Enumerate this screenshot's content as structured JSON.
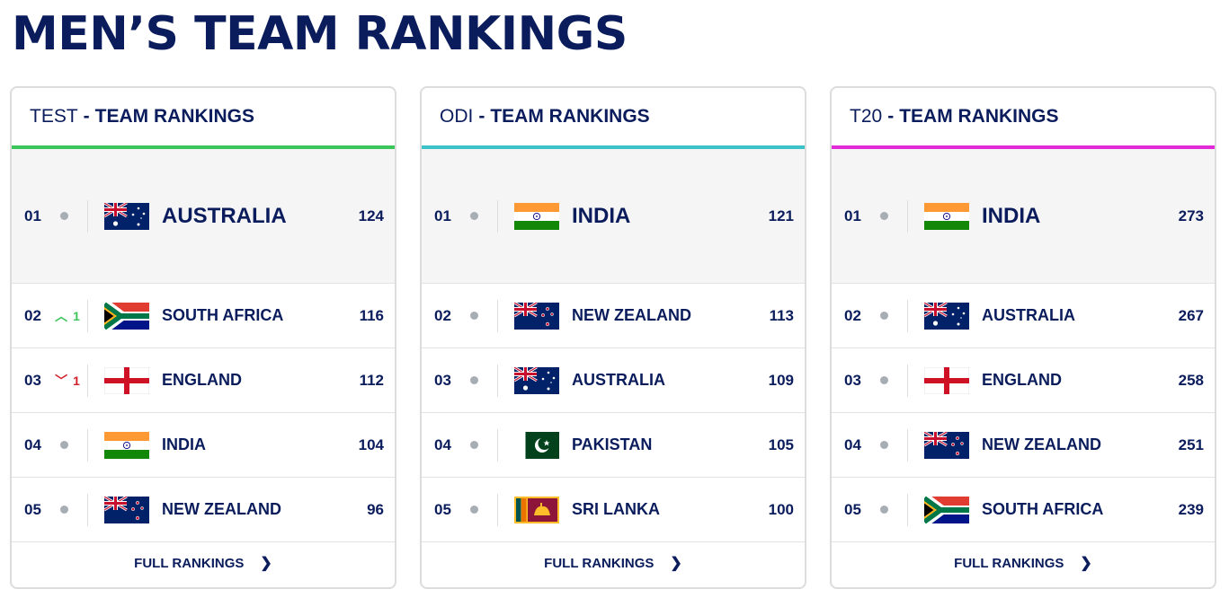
{
  "title": "MEN’S TEAM RANKINGS",
  "cards": [
    {
      "format": "TEST",
      "separator": "-",
      "label": "TEAM RANKINGS",
      "accent": "#3cc55a",
      "footer": "FULL RANKINGS",
      "rows": [
        {
          "pos": "01",
          "move": "none",
          "change": "",
          "team": "AUSTRALIA",
          "flag": "australia-flag-icon",
          "rating": "124"
        },
        {
          "pos": "02",
          "move": "up",
          "change": "1",
          "team": "SOUTH AFRICA",
          "flag": "south-africa-flag-icon",
          "rating": "116"
        },
        {
          "pos": "03",
          "move": "down",
          "change": "1",
          "team": "ENGLAND",
          "flag": "england-flag-icon",
          "rating": "112"
        },
        {
          "pos": "04",
          "move": "none",
          "change": "",
          "team": "INDIA",
          "flag": "india-flag-icon",
          "rating": "104"
        },
        {
          "pos": "05",
          "move": "none",
          "change": "",
          "team": "NEW ZEALAND",
          "flag": "new-zealand-flag-icon",
          "rating": "96"
        }
      ]
    },
    {
      "format": "ODI",
      "separator": "-",
      "label": "TEAM RANKINGS",
      "accent": "#3bc3c9",
      "footer": "FULL RANKINGS",
      "rows": [
        {
          "pos": "01",
          "move": "none",
          "change": "",
          "team": "INDIA",
          "flag": "india-flag-icon",
          "rating": "121"
        },
        {
          "pos": "02",
          "move": "none",
          "change": "",
          "team": "NEW ZEALAND",
          "flag": "new-zealand-flag-icon",
          "rating": "113"
        },
        {
          "pos": "03",
          "move": "none",
          "change": "",
          "team": "AUSTRALIA",
          "flag": "australia-flag-icon",
          "rating": "109"
        },
        {
          "pos": "04",
          "move": "none",
          "change": "",
          "team": "PAKISTAN",
          "flag": "pakistan-flag-icon",
          "rating": "105"
        },
        {
          "pos": "05",
          "move": "none",
          "change": "",
          "team": "SRI LANKA",
          "flag": "sri-lanka-flag-icon",
          "rating": "100"
        }
      ]
    },
    {
      "format": "T20",
      "separator": "-",
      "label": "TEAM RANKINGS",
      "accent": "#e12bd6",
      "footer": "FULL RANKINGS",
      "rows": [
        {
          "pos": "01",
          "move": "none",
          "change": "",
          "team": "INDIA",
          "flag": "india-flag-icon",
          "rating": "273"
        },
        {
          "pos": "02",
          "move": "none",
          "change": "",
          "team": "AUSTRALIA",
          "flag": "australia-flag-icon",
          "rating": "267"
        },
        {
          "pos": "03",
          "move": "none",
          "change": "",
          "team": "ENGLAND",
          "flag": "england-flag-icon",
          "rating": "258"
        },
        {
          "pos": "04",
          "move": "none",
          "change": "",
          "team": "NEW ZEALAND",
          "flag": "new-zealand-flag-icon",
          "rating": "251"
        },
        {
          "pos": "05",
          "move": "none",
          "change": "",
          "team": "SOUTH AFRICA",
          "flag": "south-africa-flag-icon",
          "rating": "239"
        }
      ]
    }
  ]
}
